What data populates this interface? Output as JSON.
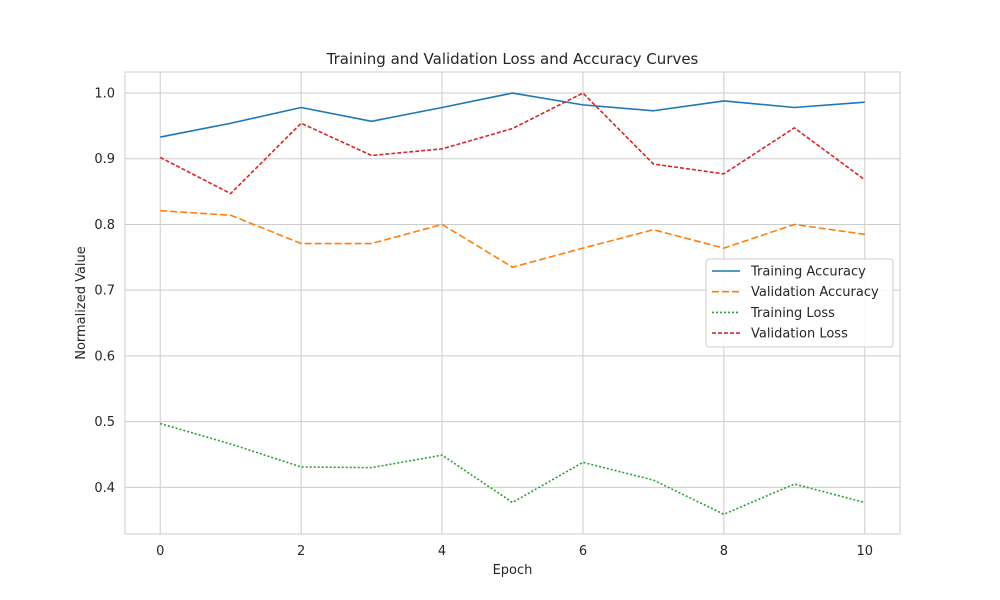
{
  "chart_data": {
    "type": "line",
    "title": "Training and Validation Loss and Accuracy Curves",
    "xlabel": "Epoch",
    "ylabel": "Normalized Value",
    "xlim": [
      -0.5,
      10.5
    ],
    "ylim": [
      0.329,
      1.032
    ],
    "x_ticks": [
      0,
      2,
      4,
      6,
      8,
      10
    ],
    "y_ticks": [
      0.4,
      0.5,
      0.6,
      0.7,
      0.8,
      0.9,
      1.0
    ],
    "grid": true,
    "legend_position": "center-right",
    "x": [
      0,
      1,
      2,
      3,
      4,
      5,
      6,
      7,
      8,
      9,
      10
    ],
    "series": [
      {
        "name": "Training Accuracy",
        "color": "#1f77b4",
        "linestyle": "solid",
        "values": [
          0.933,
          0.954,
          0.978,
          0.957,
          0.978,
          1.0,
          0.982,
          0.973,
          0.988,
          0.978,
          0.986
        ]
      },
      {
        "name": "Validation Accuracy",
        "color": "#ff7f0e",
        "linestyle": "dashed",
        "values": [
          0.821,
          0.814,
          0.771,
          0.771,
          0.8,
          0.735,
          0.764,
          0.792,
          0.764,
          0.8,
          0.785
        ]
      },
      {
        "name": "Training Loss",
        "color": "#2ca02c",
        "linestyle": "dotted",
        "values": [
          0.497,
          0.466,
          0.431,
          0.43,
          0.449,
          0.377,
          0.438,
          0.411,
          0.359,
          0.405,
          0.377
        ]
      },
      {
        "name": "Validation Loss",
        "color": "#d62728",
        "linestyle": "densely-dashed",
        "values": [
          0.902,
          0.847,
          0.954,
          0.905,
          0.915,
          0.946,
          1.0,
          0.892,
          0.877,
          0.947,
          0.868
        ]
      }
    ]
  }
}
